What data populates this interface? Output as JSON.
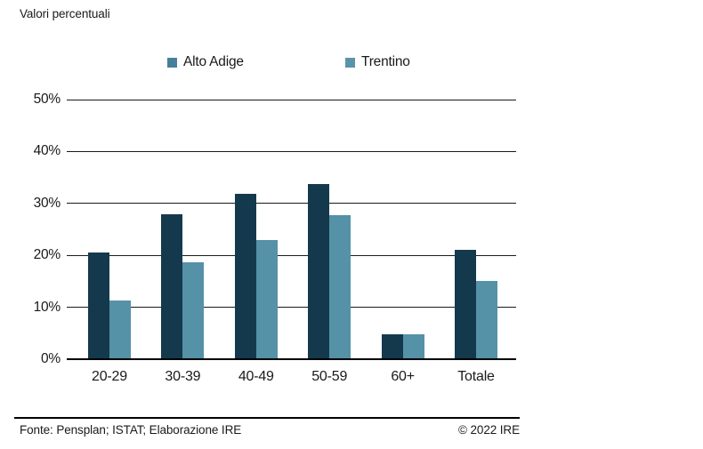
{
  "page_title": "Valori percentuali",
  "legend": {
    "items": [
      {
        "label": "Alto Adige",
        "marker_color": "#47809a"
      },
      {
        "label": "Trentino",
        "marker_color": "#5994aa"
      }
    ]
  },
  "chart_data": {
    "type": "bar",
    "title": "Valori percentuali",
    "categories": [
      "20-29",
      "30-39",
      "40-49",
      "50-59",
      "60+",
      "Totale"
    ],
    "series": [
      {
        "name": "Alto Adige",
        "color": "#14394d",
        "values": [
          20.5,
          27.9,
          31.9,
          33.7,
          4.8,
          21.0
        ]
      },
      {
        "name": "Trentino",
        "color": "#5591a7",
        "values": [
          11.3,
          18.7,
          23.0,
          27.7,
          4.8,
          15.1
        ]
      }
    ],
    "xlabel": "",
    "ylabel": "",
    "ylim": [
      0,
      50
    ],
    "yticks": [
      "0%",
      "10%",
      "20%",
      "30%",
      "40%",
      "50%"
    ],
    "grid": true,
    "legend_position": "top"
  },
  "footer": {
    "source": "Fonte: Pensplan; ISTAT; Elaborazione IRE",
    "copyright": "© 2022 IRE"
  }
}
